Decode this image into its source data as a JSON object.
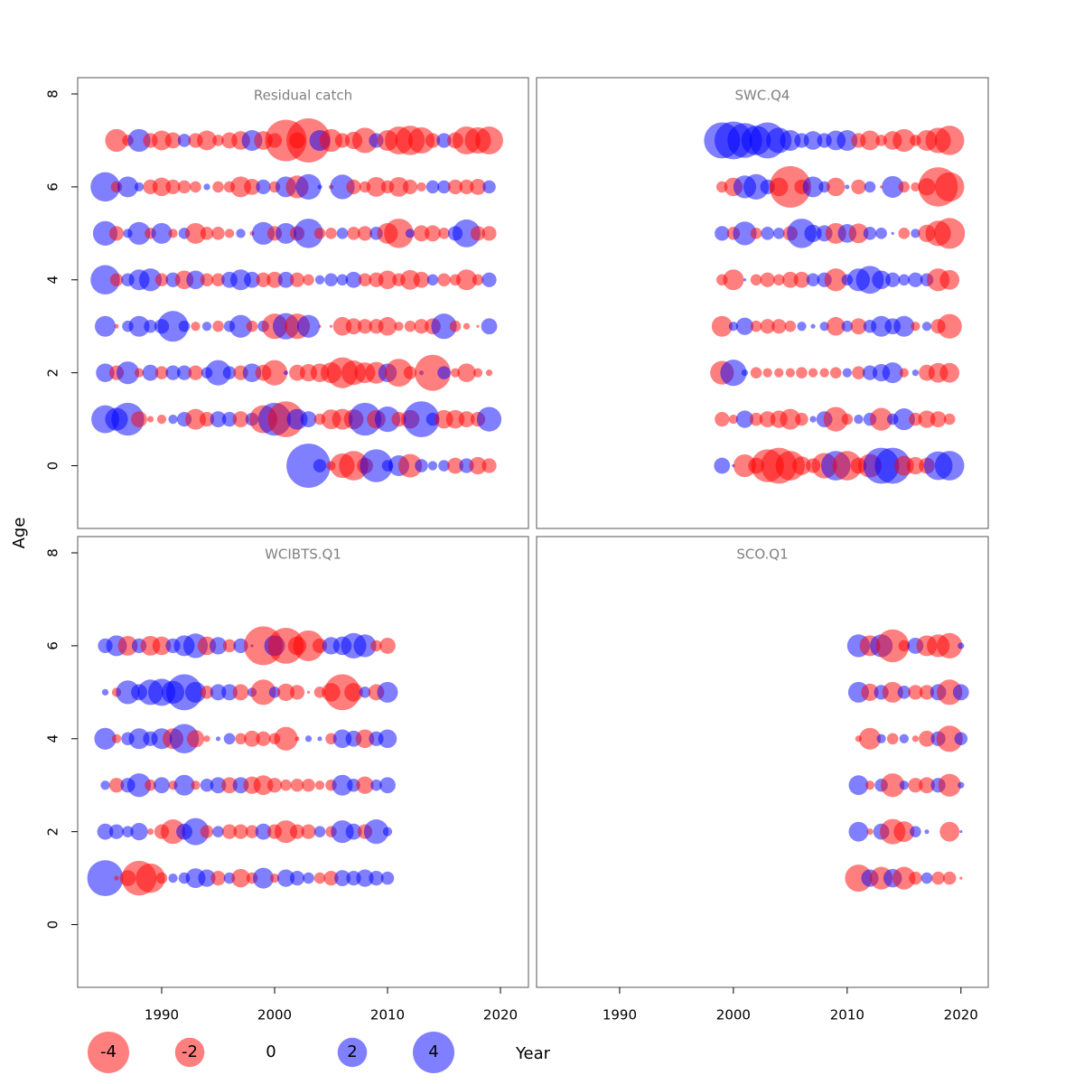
{
  "ylabel": "Age",
  "xlabel": "Year",
  "colors": {
    "positive": "#0000ff",
    "negative": "#ff0000"
  },
  "size_legend": {
    "values": [
      -4,
      -2,
      0,
      2,
      4
    ]
  },
  "chart_data": [
    {
      "type": "bubble",
      "title": "Residual catch",
      "xlim": [
        1982.56,
        2022.48
      ],
      "ylim": [
        -1.35,
        8.35
      ],
      "yticks": [
        0,
        2,
        4,
        6,
        8
      ],
      "x": [
        1985,
        1986,
        1987,
        1988,
        1989,
        1990,
        1991,
        1992,
        1993,
        1994,
        1995,
        1996,
        1997,
        1998,
        1999,
        2000,
        2001,
        2002,
        2003,
        2004,
        2005,
        2006,
        2007,
        2008,
        2009,
        2010,
        2011,
        2012,
        2013,
        2014,
        2015,
        2016,
        2017,
        2018,
        2019
      ],
      "ages": [
        0,
        1,
        2,
        3,
        4,
        5,
        6,
        7
      ],
      "residuals": [
        [
          null,
          null,
          null,
          null,
          null,
          null,
          null,
          null,
          null,
          null,
          null,
          null,
          null,
          null,
          null,
          null,
          null,
          null,
          4.5,
          0.4,
          -0.2,
          -1.4,
          -2.0,
          -0.6,
          2.5,
          0.3,
          1.0,
          -1.3,
          0.4,
          0.2,
          0.3,
          -0.6,
          0.5,
          -0.7,
          -0.5
        ],
        [
          1.8,
          1.2,
          2.5,
          -0.6,
          -0.1,
          -0.2,
          0.2,
          0.5,
          -1.0,
          -0.5,
          0.6,
          0.5,
          -0.6,
          0.4,
          -1.8,
          2.5,
          -3.0,
          1.0,
          0.6,
          -0.3,
          -0.9,
          -1.0,
          -0.9,
          2.5,
          -0.8,
          1.5,
          -0.5,
          -0.8,
          3.0,
          0.4,
          -0.8,
          -0.8,
          -0.6,
          -0.5,
          1.4
        ],
        [
          0.8,
          -0.5,
          1.2,
          -0.2,
          0.6,
          -0.4,
          0.5,
          0.5,
          -0.5,
          0.3,
          1.5,
          0.4,
          -0.5,
          0.8,
          -0.6,
          -1.5,
          0.05,
          -0.6,
          -0.7,
          -0.8,
          -1.0,
          -2.2,
          -1.4,
          -1.0,
          -1.1,
          0.8,
          -1.8,
          -0.4,
          0.05,
          -3.0,
          0.4,
          -0.2,
          -0.8,
          -0.2,
          -0.1
        ],
        [
          1.0,
          -0.05,
          0.3,
          1.0,
          0.4,
          0.5,
          2.2,
          0.3,
          -0.2,
          0.2,
          -0.3,
          0.3,
          1.2,
          -0.3,
          0.3,
          -1.5,
          1.6,
          -1.5,
          1.2,
          -0.02,
          -0.02,
          -0.8,
          -0.6,
          -0.5,
          -0.5,
          -0.8,
          -0.2,
          -0.3,
          -0.5,
          -0.6,
          1.5,
          -0.3,
          -0.1,
          -0.02,
          0.6
        ],
        [
          2.0,
          -0.4,
          0.4,
          1.0,
          1.2,
          -0.4,
          0.5,
          -0.8,
          0.8,
          -0.4,
          -0.4,
          0.6,
          1.0,
          0.6,
          -0.5,
          -0.6,
          0.6,
          -0.5,
          -0.3,
          0.2,
          0.4,
          0.3,
          0.6,
          -0.4,
          -0.5,
          -0.8,
          -0.4,
          -0.9,
          -0.6,
          0.3,
          -0.4,
          -0.3,
          -1.0,
          -0.3,
          0.5
        ],
        [
          1.4,
          -0.5,
          0.2,
          1.2,
          -0.3,
          1.0,
          -0.2,
          0.3,
          -1.0,
          -0.4,
          -0.4,
          -0.2,
          0.2,
          -0.05,
          1.2,
          -0.5,
          1.0,
          -0.5,
          2.0,
          -0.3,
          -0.3,
          0.3,
          -0.4,
          -0.5,
          0.4,
          -1.0,
          -2.0,
          0.2,
          -0.6,
          -0.6,
          -0.3,
          0.5,
          1.8,
          -0.5,
          -0.5
        ],
        [
          2.0,
          -0.3,
          1.0,
          0.2,
          -0.5,
          -0.8,
          -0.5,
          -0.4,
          -0.3,
          0.1,
          -0.3,
          -0.3,
          -1.0,
          -0.6,
          0.5,
          -0.3,
          1.0,
          -1.2,
          1.5,
          0.05,
          -0.05,
          1.4,
          -0.5,
          -0.3,
          -0.9,
          -0.4,
          -0.9,
          -0.5,
          -0.2,
          0.4,
          0.4,
          -0.5,
          -0.5,
          -0.6,
          0.4
        ],
        [
          null,
          -1.2,
          -0.3,
          1.2,
          -0.5,
          -0.9,
          -0.6,
          0.4,
          -0.5,
          -0.9,
          -0.3,
          -0.6,
          -0.8,
          1.0,
          -0.8,
          -0.5,
          -4.0,
          -0.6,
          -4.5,
          1.0,
          -1.2,
          -0.5,
          -0.7,
          -1.5,
          0.5,
          -1.0,
          -1.8,
          -2.0,
          -1.6,
          -0.5,
          0.5,
          -0.6,
          -1.8,
          -1.6,
          -1.8
        ]
      ]
    },
    {
      "type": "bubble",
      "title": "SWC.Q4",
      "xlim": [
        1982.7,
        2022.4
      ],
      "ylim": [
        -1.35,
        8.35
      ],
      "x": [
        1999,
        2000,
        2001,
        2002,
        2003,
        2004,
        2005,
        2006,
        2007,
        2008,
        2009,
        2010,
        2011,
        2012,
        2013,
        2014,
        2015,
        2016,
        2017,
        2018,
        2019
      ],
      "ages": [
        0,
        1,
        2,
        3,
        4,
        5,
        6,
        7
      ],
      "residuals": [
        [
          0.6,
          0.02,
          -1.2,
          -0.6,
          -2.5,
          -3.0,
          -2.0,
          -0.8,
          -0.5,
          -1.5,
          2.0,
          -2.0,
          -0.6,
          -1.3,
          3.0,
          3.0,
          -0.9,
          -0.7,
          -0.6,
          1.9,
          2.0
        ],
        [
          -0.5,
          -0.2,
          0.7,
          -0.4,
          -0.6,
          -0.7,
          -1.0,
          -0.4,
          0.1,
          0.6,
          -1.4,
          -0.3,
          0.2,
          0.4,
          -1.2,
          0.3,
          1.1,
          -0.4,
          -0.7,
          -0.6,
          -0.3
        ],
        [
          -1.3,
          1.6,
          0.1,
          -0.3,
          -0.2,
          -0.2,
          -0.2,
          -0.3,
          -0.2,
          -0.2,
          -0.3,
          0.2,
          -0.4,
          0.5,
          0.7,
          1.0,
          -0.2,
          0.1,
          -0.6,
          -0.9,
          -0.9
        ],
        [
          -1.0,
          0.2,
          0.7,
          -0.3,
          -0.5,
          -0.5,
          -0.3,
          0.2,
          0.05,
          0.2,
          -0.8,
          0.3,
          -0.6,
          0.4,
          1.0,
          0.6,
          1.0,
          -0.2,
          0.2,
          -0.5,
          -1.4
        ],
        [
          -0.3,
          -1.0,
          0.02,
          -0.3,
          -0.5,
          -0.3,
          -0.6,
          -0.6,
          0.4,
          0.5,
          -1.2,
          0.3,
          1.2,
          1.8,
          0.8,
          0.5,
          0.3,
          0.5,
          0.4,
          -1.2,
          -0.9
        ],
        [
          0.5,
          -0.4,
          1.3,
          -0.3,
          0.4,
          0.3,
          -0.5,
          2.0,
          0.7,
          0.6,
          -1.0,
          0.8,
          -0.9,
          0.4,
          0.3,
          0.02,
          -0.3,
          0.2,
          -0.7,
          -1.5,
          -2.2
        ],
        [
          -0.3,
          -0.8,
          1.2,
          1.5,
          0.5,
          -0.8,
          -4.0,
          -0.5,
          1.0,
          0.3,
          -0.8,
          0.05,
          -0.5,
          0.3,
          -0.02,
          1.1,
          -0.3,
          -0.2,
          -0.7,
          -3.6,
          -2.0
        ],
        [
          3.0,
          3.3,
          2.8,
          2.0,
          3.0,
          1.5,
          1.0,
          0.5,
          0.8,
          0.5,
          0.9,
          1.0,
          -0.5,
          -0.9,
          -0.3,
          -0.8,
          -1.2,
          -0.3,
          -1.0,
          -1.5,
          -2.0
        ]
      ]
    },
    {
      "type": "bubble",
      "title": "WCIBTS.Q1",
      "xlim": [
        1982.56,
        2022.48
      ],
      "ylim": [
        -1.35,
        8.35
      ],
      "yticks": [
        0,
        2,
        4,
        6,
        8
      ],
      "xticks": [
        1990,
        2000,
        2010,
        2020
      ],
      "x": [
        1985,
        1986,
        1987,
        1988,
        1989,
        1990,
        1991,
        1992,
        1993,
        1994,
        1995,
        1996,
        1997,
        1998,
        1999,
        2000,
        2001,
        2002,
        2003,
        2004,
        2005,
        2006,
        2007,
        2008,
        2009,
        2010
      ],
      "ages": [
        1,
        2,
        3,
        4,
        5,
        6
      ],
      "residuals": [
        [
          3.0,
          -0.05,
          -0.6,
          -2.8,
          -2.0,
          -0.3,
          0.2,
          0.3,
          0.9,
          0.7,
          -0.5,
          0.3,
          -0.8,
          -0.3,
          1.0,
          -0.2,
          0.7,
          0.5,
          0.3,
          -0.3,
          -0.5,
          0.6,
          0.5,
          0.7,
          0.5,
          0.4
        ],
        [
          0.6,
          0.5,
          0.3,
          0.7,
          -0.1,
          -0.5,
          -1.4,
          0.6,
          1.7,
          -0.4,
          0.3,
          -0.5,
          -0.5,
          -0.4,
          0.6,
          -0.5,
          -1.2,
          -0.5,
          -0.5,
          0.3,
          -0.3,
          1.2,
          0.6,
          -0.5,
          1.4,
          0.2
        ],
        [
          0.2,
          -0.5,
          0.5,
          1.3,
          -0.3,
          0.6,
          -0.2,
          1.0,
          -0.2,
          0.4,
          0.6,
          -0.6,
          0.6,
          -0.7,
          -0.9,
          -0.5,
          -0.3,
          -0.4,
          -0.4,
          -0.2,
          -0.3,
          1.0,
          0.4,
          -0.7,
          0.3,
          0.6
        ],
        [
          1.1,
          -0.2,
          0.4,
          1.0,
          0.5,
          1.0,
          -1.0,
          2.0,
          -0.7,
          -0.1,
          0.05,
          0.3,
          -0.3,
          -0.6,
          -0.5,
          -0.3,
          -1.3,
          -0.05,
          0.1,
          0.05,
          -0.3,
          0.8,
          0.6,
          -0.8,
          0.5,
          0.8
        ],
        [
          0.1,
          -0.2,
          1.3,
          0.6,
          1.5,
          1.7,
          1.2,
          3.0,
          1.0,
          -0.4,
          0.6,
          0.6,
          -0.6,
          0.2,
          -1.5,
          0.3,
          -0.7,
          -0.5,
          -0.02,
          -0.3,
          -0.8,
          -3.0,
          -0.8,
          0.3,
          -0.6,
          1.0
        ],
        [
          0.5,
          1.0,
          -0.9,
          0.5,
          -0.9,
          -0.8,
          0.5,
          1.0,
          1.4,
          -0.8,
          0.7,
          -0.4,
          0.5,
          0.02,
          -3.5,
          1.0,
          -3.0,
          -0.8,
          -2.2,
          -0.5,
          0.7,
          0.8,
          1.5,
          1.2,
          -0.3,
          -0.6
        ]
      ]
    },
    {
      "type": "bubble",
      "title": "SCO.Q1",
      "xlim": [
        1982.7,
        2022.4
      ],
      "ylim": [
        -1.35,
        8.35
      ],
      "xticks": [
        1990,
        2000,
        2010,
        2020
      ],
      "x": [
        2011,
        2012,
        2013,
        2014,
        2015,
        2016,
        2017,
        2018,
        2019,
        2020
      ],
      "ages": [
        1,
        2,
        3,
        4,
        5,
        6
      ],
      "residuals": [
        [
          -1.7,
          0.7,
          -1.2,
          0.8,
          -1.2,
          -0.4,
          0.3,
          -0.4,
          -0.4,
          -0.02
        ],
        [
          0.9,
          -0.1,
          0.6,
          -1.5,
          -1.0,
          0.3,
          0.05,
          null,
          -0.9,
          0.02
        ],
        [
          0.9,
          -0.2,
          0.4,
          -1.3,
          0.2,
          -0.5,
          -0.6,
          0.5,
          -1.2,
          0.1
        ],
        [
          -0.1,
          -1.1,
          0.2,
          -0.3,
          0.2,
          -0.1,
          -0.6,
          0.5,
          -1.6,
          0.4
        ],
        [
          1.0,
          -0.7,
          0.5,
          -1.0,
          0.4,
          -0.5,
          -0.5,
          0.6,
          -1.5,
          0.6
        ],
        [
          1.2,
          -1.0,
          1.2,
          -2.5,
          -0.3,
          0.6,
          -1.0,
          -1.2,
          -1.5,
          0.1
        ]
      ]
    }
  ]
}
